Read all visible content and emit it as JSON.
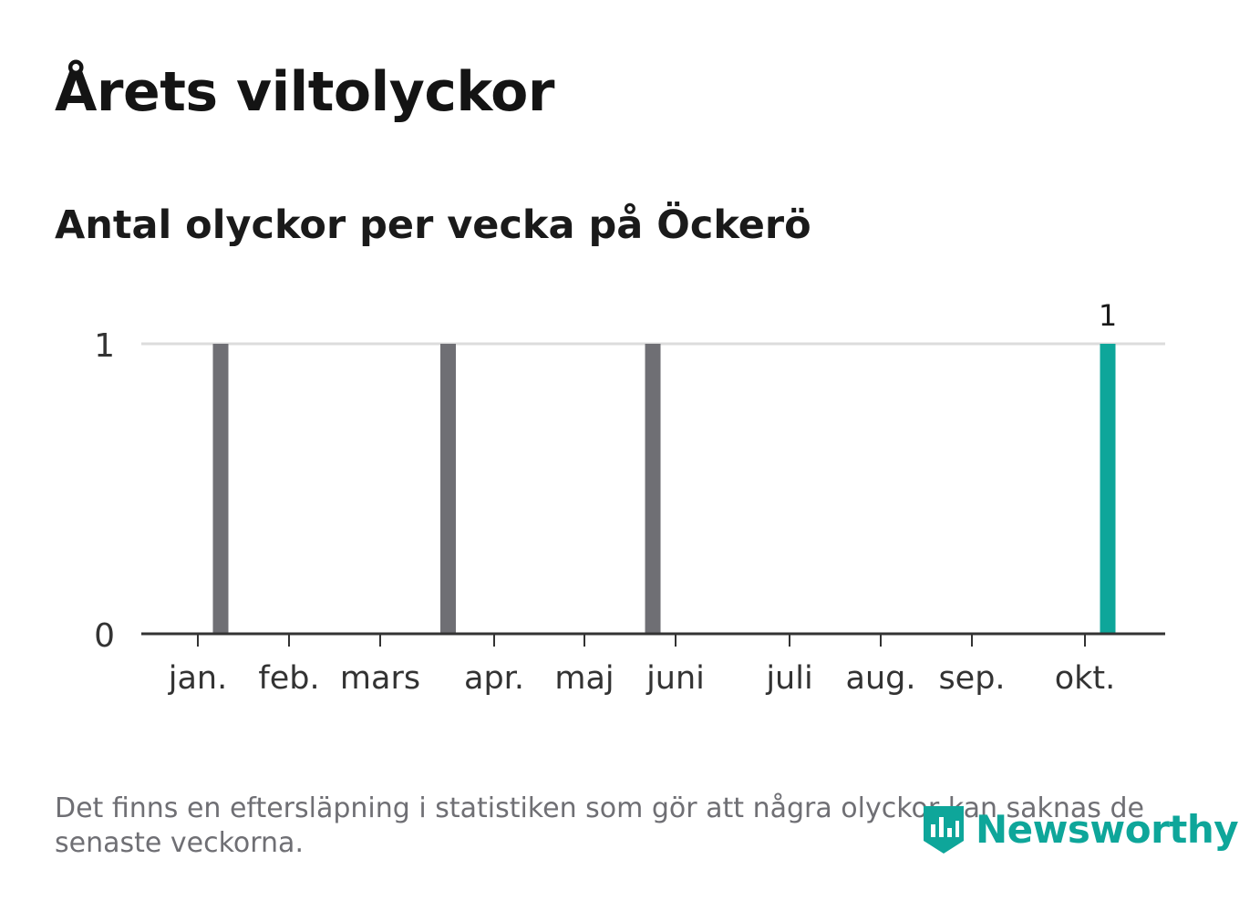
{
  "header": {
    "title": "Årets viltolyckor",
    "subtitle": "Antal olyckor per vecka på Öckerö"
  },
  "chart_data": {
    "type": "bar",
    "title": "Årets viltolyckor",
    "subtitle": "Antal olyckor per vecka på Öckerö",
    "xlabel": "",
    "ylabel": "",
    "ylim": [
      0,
      1
    ],
    "y_ticks": [
      "0",
      "1"
    ],
    "x_tick_labels": [
      "jan.",
      "feb.",
      "mars",
      "apr.",
      "maj",
      "juni",
      "juli",
      "aug.",
      "sep.",
      "okt."
    ],
    "grid": true,
    "week_range": [
      1,
      45
    ],
    "bars": [
      {
        "week": 2,
        "value": 1,
        "highlight": false
      },
      {
        "week": 12,
        "value": 1,
        "highlight": false
      },
      {
        "week": 21,
        "value": 1,
        "highlight": false
      },
      {
        "week": 41,
        "value": 1,
        "highlight": true,
        "label": "1"
      }
    ],
    "colors": {
      "bar": "#6f6f74",
      "highlight": "#0ea69a",
      "grid": "#dcdcdc",
      "axis": "#333333"
    }
  },
  "footer": {
    "note": "Det finns en eftersläpning i statistiken som gör att några olyckor kan saknas de senaste veckorna.",
    "brand": "Newsworthy",
    "brand_icon": "newsworthy-logo-icon"
  }
}
